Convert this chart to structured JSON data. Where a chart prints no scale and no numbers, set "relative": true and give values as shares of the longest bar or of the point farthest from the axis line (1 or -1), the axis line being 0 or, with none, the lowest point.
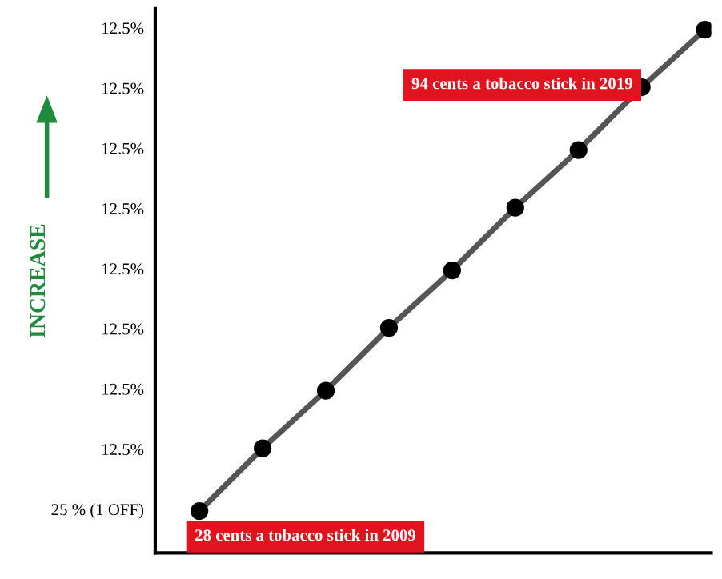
{
  "chart_data": {
    "type": "line",
    "ylabel": "INCREASE",
    "relative": true,
    "categories": [
      null,
      null,
      null,
      null,
      null,
      null,
      null,
      null,
      null
    ],
    "series": [
      {
        "color": "#555555",
        "values": [
          0.08,
          0.2,
          0.31,
          0.43,
          0.54,
          0.66,
          0.77,
          0.89,
          1.0
        ]
      }
    ],
    "annotations": [
      "94 cents a tobacco stick in 2019",
      "28 cents a tobacco stick in 2009",
      "25 % (1 OFF)",
      "12.5%",
      "12.5%",
      "12.5%",
      "12.5%",
      "12.5%",
      "12.5%",
      "12.5%",
      "12.5%"
    ],
    "marker": "circle",
    "line_style": "solid",
    "grid": false,
    "legend": false
  }
}
